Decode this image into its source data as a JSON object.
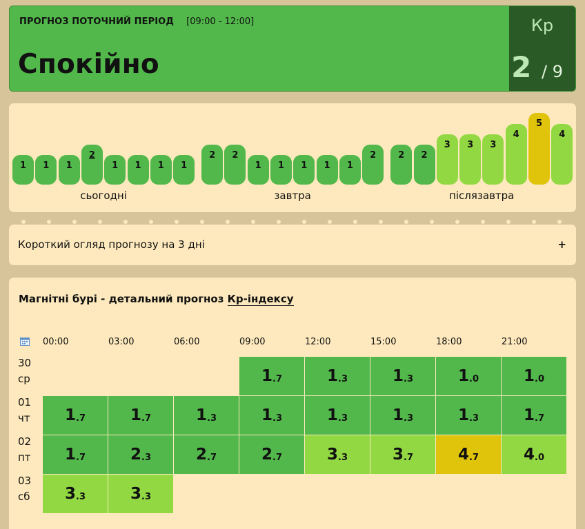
{
  "header": {
    "period_label": "ПРОГНОЗ ПОТОЧНИЙ ПЕРІОД",
    "period_time": "[09:00 - 12:00]",
    "status": "Спокійно",
    "kp_title": "Кр",
    "kp_value": "2",
    "kp_max": "/ 9"
  },
  "colors": {
    "kp_1_2": "#52b84b",
    "kp_3_4": "#92d843",
    "kp_5": "#e0c40c",
    "panel": "#fde9bd",
    "header_dark": "#2a5a25"
  },
  "bars": {
    "days": [
      {
        "label": "сьогодні",
        "values": [
          "1",
          "1",
          "1",
          "2",
          "1",
          "1",
          "1",
          "1"
        ],
        "current_index": 3
      },
      {
        "label": "завтра",
        "values": [
          "2",
          "2",
          "1",
          "1",
          "1",
          "1",
          "1",
          "2"
        ],
        "current_index": -1
      },
      {
        "label": "післязавтра",
        "values": [
          "2",
          "2",
          "3",
          "3",
          "3",
          "4",
          "5",
          "4"
        ],
        "current_index": -1
      }
    ]
  },
  "summary": {
    "text": "Короткий огляд прогнозу на 3 дні",
    "expand": "+"
  },
  "detail": {
    "title_prefix": "Магнітні бурі - детальний прогноз ",
    "title_link": "Кр-індексу",
    "times": [
      "00:00",
      "03:00",
      "06:00",
      "09:00",
      "12:00",
      "15:00",
      "18:00",
      "21:00"
    ],
    "rows": [
      {
        "day": "30",
        "dow": "ср",
        "cells": [
          null,
          null,
          null,
          [
            "1",
            ".7"
          ],
          [
            "1",
            ".3"
          ],
          [
            "1",
            ".3"
          ],
          [
            "1",
            ".0"
          ],
          [
            "1",
            ".0"
          ]
        ]
      },
      {
        "day": "01",
        "dow": "чт",
        "cells": [
          [
            "1",
            ".7"
          ],
          [
            "1",
            ".7"
          ],
          [
            "1",
            ".3"
          ],
          [
            "1",
            ".3"
          ],
          [
            "1",
            ".3"
          ],
          [
            "1",
            ".3"
          ],
          [
            "1",
            ".3"
          ],
          [
            "1",
            ".7"
          ]
        ]
      },
      {
        "day": "02",
        "dow": "пт",
        "cells": [
          [
            "1",
            ".7"
          ],
          [
            "2",
            ".3"
          ],
          [
            "2",
            ".7"
          ],
          [
            "2",
            ".7"
          ],
          [
            "3",
            ".3"
          ],
          [
            "3",
            ".7"
          ],
          [
            "4",
            ".7"
          ],
          [
            "4",
            ".0"
          ]
        ]
      },
      {
        "day": "03",
        "dow": "сб",
        "cells": [
          [
            "3",
            ".3"
          ],
          [
            "3",
            ".3"
          ],
          null,
          null,
          null,
          null,
          null,
          null
        ]
      }
    ]
  }
}
